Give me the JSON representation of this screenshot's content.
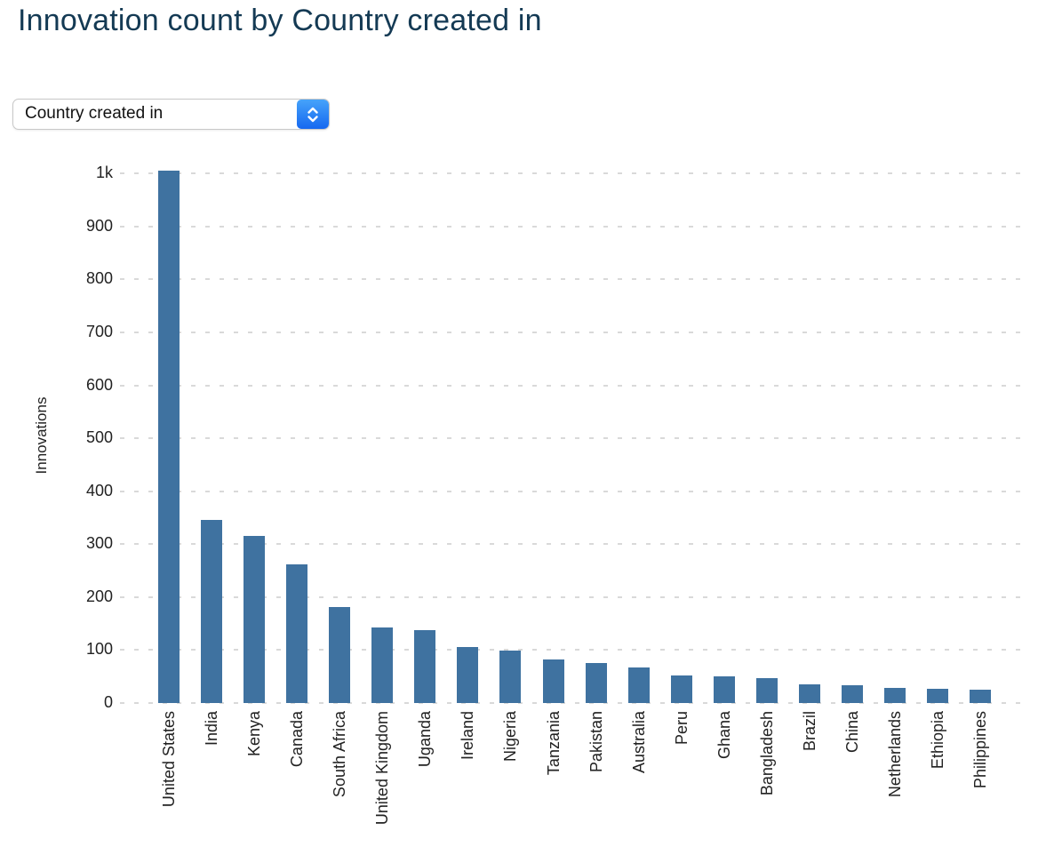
{
  "page": {
    "title": "Innovation count by Country created in"
  },
  "controls": {
    "group_by_select": {
      "value": "Country created in",
      "options": [
        "Country created in"
      ]
    }
  },
  "chart_data": {
    "type": "bar",
    "title": "Innovation count by Country created in",
    "xlabel": "",
    "ylabel": "Innovations",
    "categories": [
      "United States",
      "India",
      "Kenya",
      "Canada",
      "South Africa",
      "United Kingdom",
      "Uganda",
      "Ireland",
      "Nigeria",
      "Tanzania",
      "Pakistan",
      "Australia",
      "Peru",
      "Ghana",
      "Bangladesh",
      "Brazil",
      "China",
      "Netherlands",
      "Ethiopia",
      "Philippines"
    ],
    "values": [
      1005,
      345,
      315,
      262,
      181,
      143,
      137,
      105,
      99,
      82,
      75,
      66,
      51,
      50,
      47,
      35,
      33,
      28,
      27,
      25
    ],
    "ylim": [
      0,
      1050
    ],
    "ytick_values": [
      0,
      100,
      200,
      300,
      400,
      500,
      600,
      700,
      800,
      900,
      1000
    ],
    "ytick_labels": [
      "0",
      "100",
      "200",
      "300",
      "400",
      "500",
      "600",
      "700",
      "800",
      "900",
      "1k"
    ],
    "grid": "horizontal-dashed",
    "legend": "none",
    "bar_color": "#3F72A0",
    "grid_color": "#D9D9D9",
    "tick_color": "#222222",
    "title_color": "#143A54"
  }
}
